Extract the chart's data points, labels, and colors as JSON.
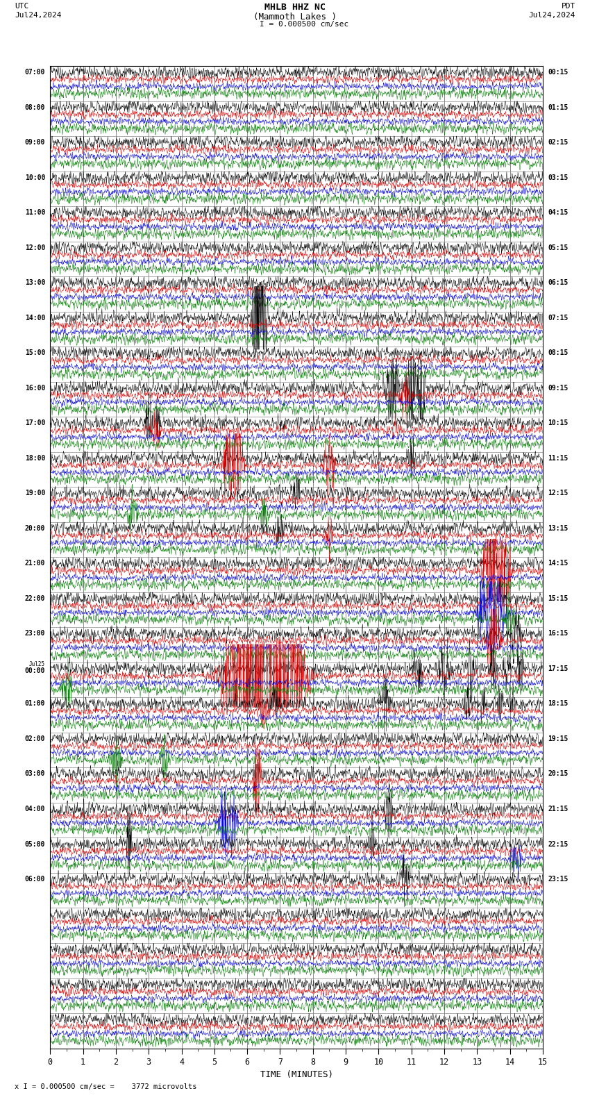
{
  "title_line1": "MHLB HHZ NC",
  "title_line2": "(Mammoth Lakes )",
  "scale_label": "I = 0.000500 cm/sec",
  "utc_label": "UTC",
  "pdt_label": "PDT",
  "date_left": "Jul24,2024",
  "date_right": "Jul24,2024",
  "bottom_label": "x I = 0.000500 cm/sec =    3772 microvolts",
  "xlabel": "TIME (MINUTES)",
  "bg_color": "#ffffff",
  "colors": [
    "#000000",
    "#cc0000",
    "#0000cc",
    "#007700"
  ],
  "n_rows": 28,
  "minutes": 15,
  "utc_times": [
    "07:00",
    "08:00",
    "09:00",
    "10:00",
    "11:00",
    "12:00",
    "13:00",
    "14:00",
    "15:00",
    "16:00",
    "17:00",
    "18:00",
    "19:00",
    "20:00",
    "21:00",
    "22:00",
    "23:00",
    "Jul25\n00:00",
    "01:00",
    "02:00",
    "03:00",
    "04:00",
    "05:00",
    "06:00",
    "",
    "",
    "",
    ""
  ],
  "pdt_times": [
    "00:15",
    "01:15",
    "02:15",
    "03:15",
    "04:15",
    "05:15",
    "06:15",
    "07:15",
    "08:15",
    "09:15",
    "10:15",
    "11:15",
    "12:15",
    "13:15",
    "14:15",
    "15:15",
    "16:15",
    "17:15",
    "18:15",
    "19:15",
    "20:15",
    "21:15",
    "22:15",
    "23:15",
    "",
    "",
    "",
    ""
  ],
  "trace_amplitude": [
    0.12,
    0.08,
    0.07,
    0.1
  ],
  "lw": 0.5
}
